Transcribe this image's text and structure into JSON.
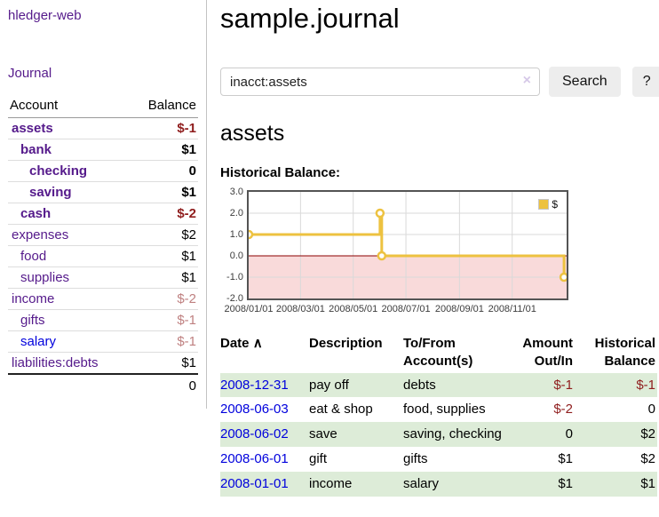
{
  "app": {
    "brand": "hledger-web",
    "nav": {
      "journal": "Journal"
    }
  },
  "sidebar": {
    "header": {
      "account": "Account",
      "balance": "Balance"
    },
    "accounts": [
      {
        "name": "assets",
        "depth": 1,
        "strong": true,
        "blue": false,
        "balance": "$-1",
        "bal_class": "neg"
      },
      {
        "name": "bank",
        "depth": 2,
        "strong": true,
        "blue": false,
        "balance": "$1",
        "bal_class": ""
      },
      {
        "name": "checking",
        "depth": 3,
        "strong": true,
        "blue": false,
        "balance": "0",
        "bal_class": ""
      },
      {
        "name": "saving",
        "depth": 3,
        "strong": true,
        "blue": false,
        "balance": "$1",
        "bal_class": ""
      },
      {
        "name": "cash",
        "depth": 2,
        "strong": true,
        "blue": false,
        "balance": "$-2",
        "bal_class": "neg"
      },
      {
        "name": "expenses",
        "depth": 1,
        "strong": false,
        "blue": false,
        "balance": "$2",
        "bal_class": ""
      },
      {
        "name": "food",
        "depth": 2,
        "strong": false,
        "blue": false,
        "balance": "$1",
        "bal_class": ""
      },
      {
        "name": "supplies",
        "depth": 2,
        "strong": false,
        "blue": false,
        "balance": "$1",
        "bal_class": ""
      },
      {
        "name": "income",
        "depth": 1,
        "strong": false,
        "blue": false,
        "balance": "$-2",
        "bal_class": "neg-muted"
      },
      {
        "name": "gifts",
        "depth": 2,
        "strong": false,
        "blue": false,
        "balance": "$-1",
        "bal_class": "neg-muted"
      },
      {
        "name": "salary",
        "depth": 2,
        "strong": false,
        "blue": true,
        "balance": "$-1",
        "bal_class": "neg-muted"
      },
      {
        "name": "liabilities:debts",
        "depth": 1,
        "strong": false,
        "blue": false,
        "balance": "$1",
        "bal_class": ""
      }
    ],
    "total": "0"
  },
  "main": {
    "title": "sample.journal",
    "search": {
      "value": "inacct:assets",
      "clear_icon": "×",
      "search_button": "Search",
      "help_button": "?"
    },
    "account_heading": "assets",
    "chart_label": "Historical Balance:"
  },
  "chart_data": {
    "type": "line",
    "step": true,
    "title": "Historical Balance",
    "series": [
      {
        "name": "$",
        "color": "#edc240",
        "points": [
          [
            "2008-01-01",
            1
          ],
          [
            "2008-06-01",
            2
          ],
          [
            "2008-06-03",
            0
          ],
          [
            "2008-12-31",
            -1
          ]
        ]
      }
    ],
    "x_ticks": [
      "2008/01/01",
      "2008/03/01",
      "2008/05/01",
      "2008/07/01",
      "2008/09/01",
      "2008/11/01"
    ],
    "y_ticks": [
      3.0,
      2.0,
      1.0,
      0.0,
      -1.0,
      -2.0
    ],
    "xlim": [
      "2008-01-01",
      "2009-01-03"
    ],
    "ylim": [
      -2,
      3
    ],
    "grid": true,
    "legend_position": "top-right",
    "colors": {
      "negative_region_fill": "#f9dada",
      "zero_line": "#8b0000",
      "grid_line": "#d9d9d9",
      "border": "#545454"
    }
  },
  "register": {
    "headers": {
      "date": "Date",
      "sort_icon": "∧",
      "description": "Description",
      "account": [
        "To/From",
        "Account(s)"
      ],
      "amount": [
        "Amount",
        "Out/In"
      ],
      "balance": [
        "Historical",
        "Balance"
      ]
    },
    "rows": [
      {
        "date": "2008-12-31",
        "description": "pay off",
        "accounts": "debts",
        "amount": "$-1",
        "amount_neg": true,
        "balance": "$-1",
        "balance_neg": true,
        "shaded": true
      },
      {
        "date": "2008-06-03",
        "description": "eat & shop",
        "accounts": "food, supplies",
        "amount": "$-2",
        "amount_neg": true,
        "balance": "0",
        "balance_neg": false,
        "shaded": false
      },
      {
        "date": "2008-06-02",
        "description": "save",
        "accounts": "saving, checking",
        "amount": "0",
        "amount_neg": false,
        "balance": "$2",
        "balance_neg": false,
        "shaded": true
      },
      {
        "date": "2008-06-01",
        "description": "gift",
        "accounts": "gifts",
        "amount": "$1",
        "amount_neg": false,
        "balance": "$2",
        "balance_neg": false,
        "shaded": false
      },
      {
        "date": "2008-01-01",
        "description": "income",
        "accounts": "salary",
        "amount": "$1",
        "amount_neg": false,
        "balance": "$1",
        "balance_neg": false,
        "shaded": true
      }
    ]
  },
  "colors": {
    "accent_purple": "#551a8b",
    "link_blue": "#0000dd",
    "negative_strong": "#8f1d1d",
    "negative_muted": "#bf8080",
    "row_shade_green": "#ddecd8",
    "button_bg": "#ededed",
    "series_yellow": "#edc240"
  }
}
